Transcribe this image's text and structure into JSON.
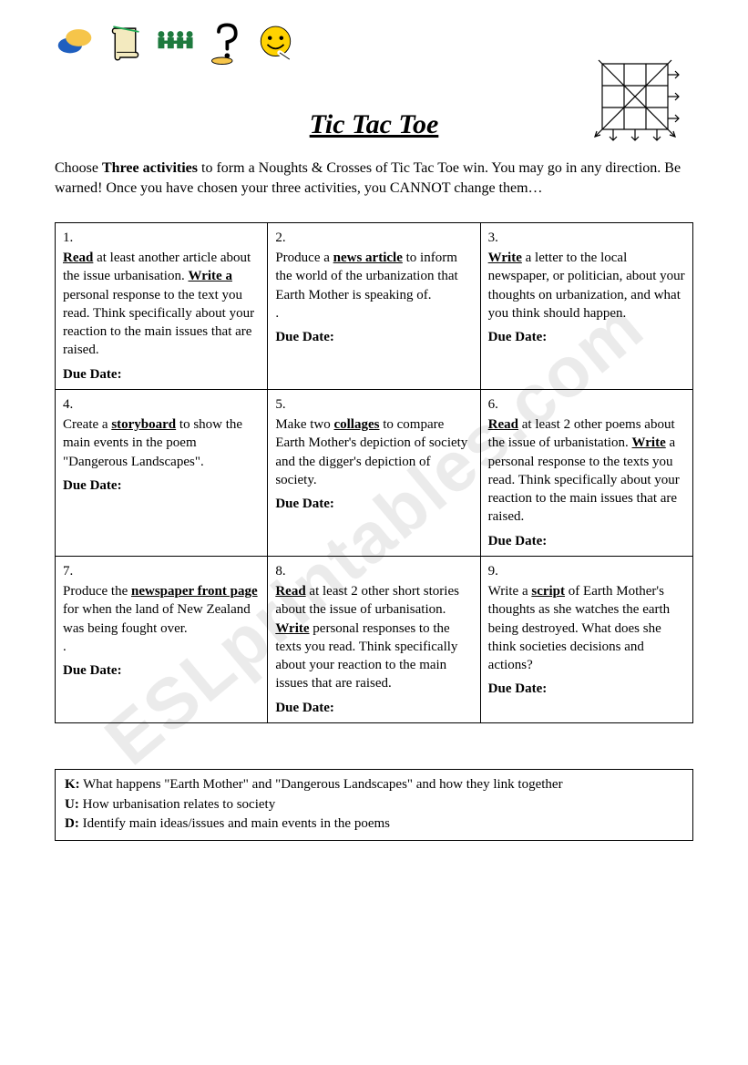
{
  "title": "Tic Tac Toe",
  "instructions_parts": {
    "pre": "Choose ",
    "bold1": "Three activities",
    "mid": " to form a Noughts & Crosses of Tic Tac Toe win.  You may go in any direction.  Be warned!  Once you have chosen your three activities, you CANNOT change them…"
  },
  "due_label": "Due Date:",
  "cells": [
    {
      "n": "1.",
      "html": "<span class='u'>Read</span> at least another article about the issue urbanisation. <span class='u'>Write a</span> personal response to the text you read. Think specifically about your reaction to the main issues that are raised."
    },
    {
      "n": "2.",
      "html": "Produce a <span class='u'>news article</span> to inform the world of the urbanization that Earth Mother is speaking of.<br>."
    },
    {
      "n": "3.",
      "html": "<span class='u'>Write</span> a letter to the local newspaper, or politician, about your thoughts on urbanization, and what you think should happen."
    },
    {
      "n": "4.",
      "html": "Create a <span class='u'>storyboard</span> to show the main events in the poem \"Dangerous Landscapes\"."
    },
    {
      "n": "5.",
      "html": "Make two <span class='u'>collages</span> to compare Earth Mother's depiction of society and the digger's depiction of society."
    },
    {
      "n": "6.",
      "html": "<span class='u'>Read</span> at least 2 other poems about the issue of urbanistation.  <span class='u'>Write</span> a personal response to the texts you read. Think specifically about your reaction to the main issues that are raised."
    },
    {
      "n": "7.",
      "html": "Produce the <span class='u'>newspaper front page</span> for when the land of New Zealand was being fought over.<br>."
    },
    {
      "n": "8.",
      "html": "<span class='u'>Read</span> at least 2 other short stories about the issue of urbanisation. <span class='u'>Write</span> personal responses to the texts you read. Think specifically about your reaction to the main issues that are raised."
    },
    {
      "n": "9.",
      "html": "Write a <span class='u'>script</span> of Earth Mother's thoughts as she watches the earth being destroyed.  What does she think societies decisions and actions?"
    }
  ],
  "kud": {
    "k": {
      "label": "K:",
      "text": " What happens \"Earth Mother\" and \"Dangerous Landscapes\" and how they link together"
    },
    "u": {
      "label": "U:",
      "text": " How urbanisation relates to society"
    },
    "d": {
      "label": "D:",
      "text": " Identify main ideas/issues and main events in the poems"
    }
  },
  "watermark_text": "ESLprintables.com",
  "icons": {
    "speech": {
      "fill": "#f6c54a",
      "shadow": "#1f5fbf"
    },
    "scroll": {
      "fill": "#f3eabf",
      "stroke": "#000"
    },
    "people": {
      "fill": "#1e7a3e"
    },
    "question": {
      "stroke": "#000",
      "fill": "#f6c54a"
    },
    "smiley": {
      "fill": "#ffd200",
      "stroke": "#000"
    }
  },
  "diagram": {
    "stroke": "#000000",
    "cell": 24,
    "arrow_len": 10
  }
}
